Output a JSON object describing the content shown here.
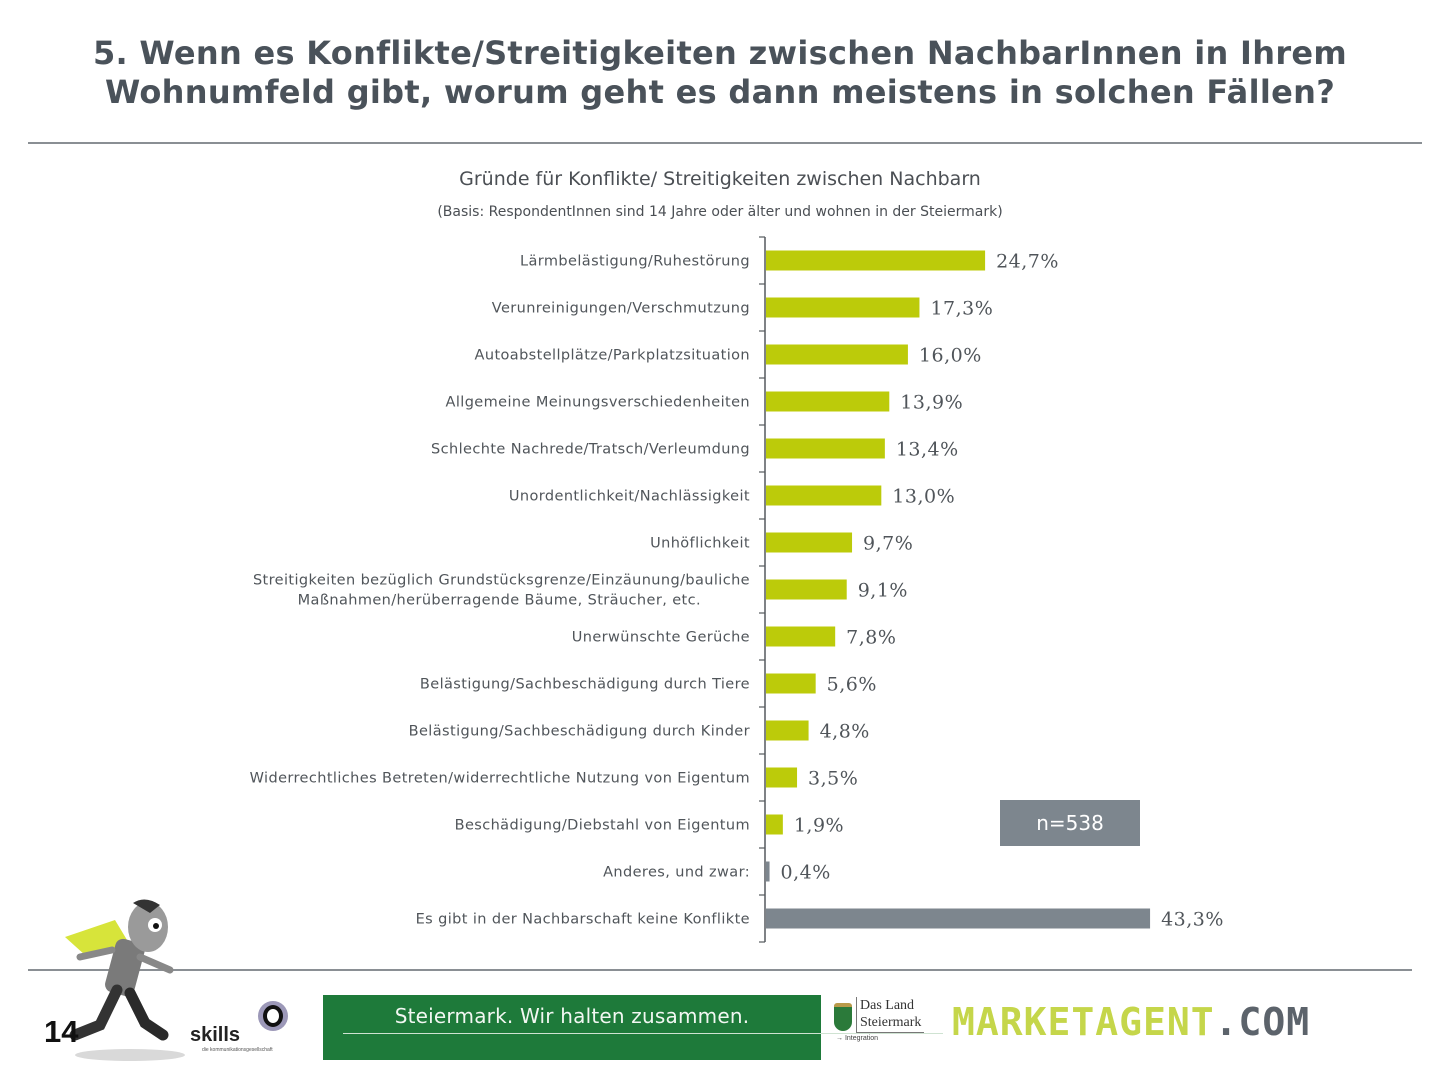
{
  "page": {
    "title_line1": "5. Wenn es Konflikte/Streitigkeiten zwischen NachbarInnen in Ihrem",
    "title_line2": "Wohnumfeld gibt, worum geht es dann meistens in solchen Fällen?",
    "page_number": "14",
    "sample_size": "n=538"
  },
  "footer": {
    "skills_name": "skills",
    "skills_tagline": "die kommunikationsgesellschaft",
    "banner_text": "Steiermark. Wir halten zusammen.",
    "land_name_line1": "Das Land",
    "land_name_line2": "Steiermark",
    "land_subtext": "→ Integration",
    "marketagent_part1": "MARKETAGENT",
    "marketagent_part2": ".COM"
  },
  "colors": {
    "bar_primary": "#bccb0a",
    "bar_secondary": "#7d868e",
    "axis": "#55595e",
    "banner_green": "#1e7a3a"
  },
  "chart_data": {
    "type": "bar",
    "orientation": "horizontal",
    "title": "Gründe für Konflikte/ Streitigkeiten zwischen Nachbarn",
    "subtitle": "(Basis: RespondentInnen sind 14 Jahre oder älter und wohnen in der Steiermark)",
    "xlabel": "",
    "ylabel": "",
    "unit": "%",
    "xlim": [
      0,
      45
    ],
    "grid": false,
    "categories": [
      [
        "Lärmbelästigung/Ruhestörung"
      ],
      [
        "Verunreinigungen/Verschmutzung"
      ],
      [
        "Autoabstellplätze/Parkplatzsituation"
      ],
      [
        "Allgemeine Meinungsverschiedenheiten"
      ],
      [
        "Schlechte Nachrede/Tratsch/Verleumdung"
      ],
      [
        "Unordentlichkeit/Nachlässigkeit"
      ],
      [
        "Unhöflichkeit"
      ],
      [
        "Streitigkeiten bezüglich Grundstücksgrenze/Einzäunung/bauliche",
        "Maßnahmen/herüberragende Bäume, Sträucher, etc."
      ],
      [
        "Unerwünschte Gerüche"
      ],
      [
        "Belästigung/Sachbeschädigung durch Tiere"
      ],
      [
        "Belästigung/Sachbeschädigung durch Kinder"
      ],
      [
        "Widerrechtliches Betreten/widerrechtliche Nutzung von Eigentum"
      ],
      [
        "Beschädigung/Diebstahl von Eigentum"
      ],
      [
        "Anderes, und zwar:"
      ],
      [
        "Es gibt in der Nachbarschaft keine Konflikte"
      ]
    ],
    "values": [
      24.7,
      17.3,
      16.0,
      13.9,
      13.4,
      13.0,
      9.7,
      9.1,
      7.8,
      5.6,
      4.8,
      3.5,
      1.9,
      0.4,
      43.3
    ],
    "value_labels": [
      "24,7%",
      "17,3%",
      "16,0%",
      "13,9%",
      "13,4%",
      "13,0%",
      "9,7%",
      "9,1%",
      "7,8%",
      "5,6%",
      "4,8%",
      "3,5%",
      "1,9%",
      "0,4%",
      "43,3%"
    ],
    "bar_color_group": [
      "primary",
      "primary",
      "primary",
      "primary",
      "primary",
      "primary",
      "primary",
      "primary",
      "primary",
      "primary",
      "primary",
      "primary",
      "primary",
      "secondary",
      "secondary"
    ],
    "annotation": "n=538"
  }
}
